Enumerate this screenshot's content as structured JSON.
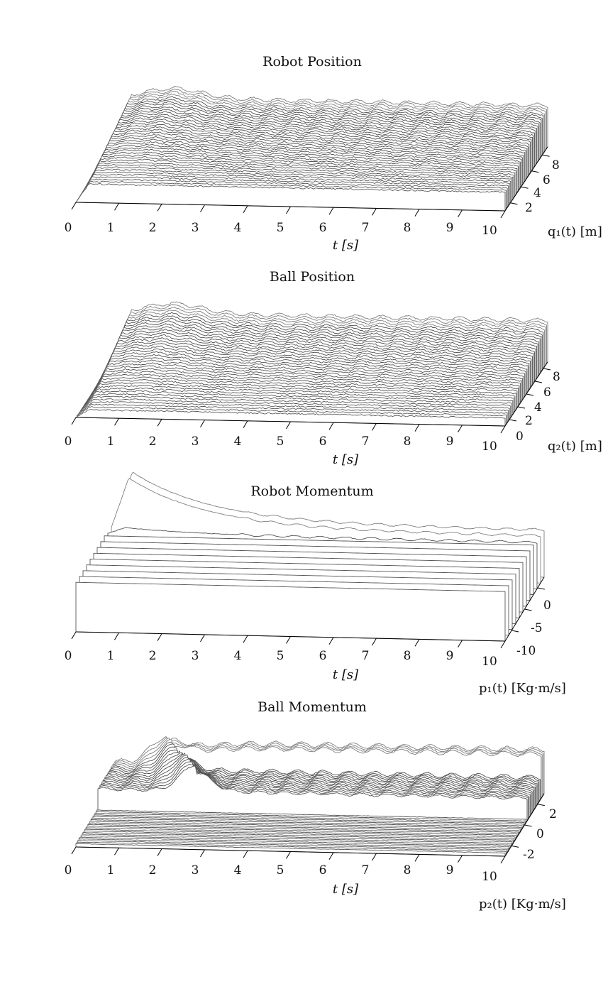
{
  "chart_data": [
    {
      "type": "waterfall-3d",
      "title": "Robot Position",
      "xlabel": "t [s]",
      "zlabel": "q₁(t) [m]",
      "xlim": [
        0,
        10
      ],
      "x_ticks": [
        "0",
        "1",
        "2",
        "3",
        "4",
        "5",
        "6",
        "7",
        "8",
        "9",
        "10"
      ],
      "z_ticks": [
        "2",
        "4",
        "6",
        "8"
      ],
      "zlim": [
        0,
        9.5
      ],
      "series_count": 40,
      "description_values": {
        "steady_upper": 7.8,
        "steady_lower": 3.5,
        "peak_time": 1.3,
        "oscillation_period": 0.6
      }
    },
    {
      "type": "waterfall-3d",
      "title": "Ball Position",
      "xlabel": "t [s]",
      "zlabel": "q₂(t) [m]",
      "xlim": [
        0,
        10
      ],
      "x_ticks": [
        "0",
        "1",
        "2",
        "3",
        "4",
        "5",
        "6",
        "7",
        "8",
        "9",
        "10"
      ],
      "z_ticks": [
        "0",
        "2",
        "4",
        "6",
        "8"
      ],
      "zlim": [
        0,
        9.5
      ],
      "series_count": 40,
      "description_values": {
        "steady_upper": 7.8,
        "steady_lower": 1.5,
        "peak_time": 1.3,
        "oscillation_period": 0.6
      }
    },
    {
      "type": "waterfall-3d",
      "title": "Robot Momentum",
      "xlabel": "t [s]",
      "zlabel": "p₁(t) [Kg·m/s]",
      "xlim": [
        0,
        10
      ],
      "x_ticks": [
        "0",
        "1",
        "2",
        "3",
        "4",
        "5",
        "6",
        "7",
        "8",
        "9",
        "10"
      ],
      "z_ticks": [
        "-10",
        "-5",
        "0"
      ],
      "zlim": [
        -11,
        2
      ],
      "series_count": 12,
      "description_values": {
        "steady_upper": 1.0,
        "steady_lower": -0.5,
        "peak_time": 0.4,
        "oscillation_period": 0.6
      }
    },
    {
      "type": "waterfall-3d",
      "title": "Ball Momentum",
      "xlabel": "t [s]",
      "zlabel": "p₂(t) [Kg·m/s]",
      "xlim": [
        0,
        10
      ],
      "x_ticks": [
        "0",
        "1",
        "2",
        "3",
        "4",
        "5",
        "6",
        "7",
        "8",
        "9",
        "10"
      ],
      "z_ticks": [
        "-2",
        "0",
        "2"
      ],
      "zlim": [
        -3,
        3.5
      ],
      "series_count": 40,
      "description_values": {
        "steady_upper": 2.5,
        "steady_lower": 0.0,
        "peak_time": 1.2,
        "oscillation_period": 0.6
      }
    }
  ]
}
